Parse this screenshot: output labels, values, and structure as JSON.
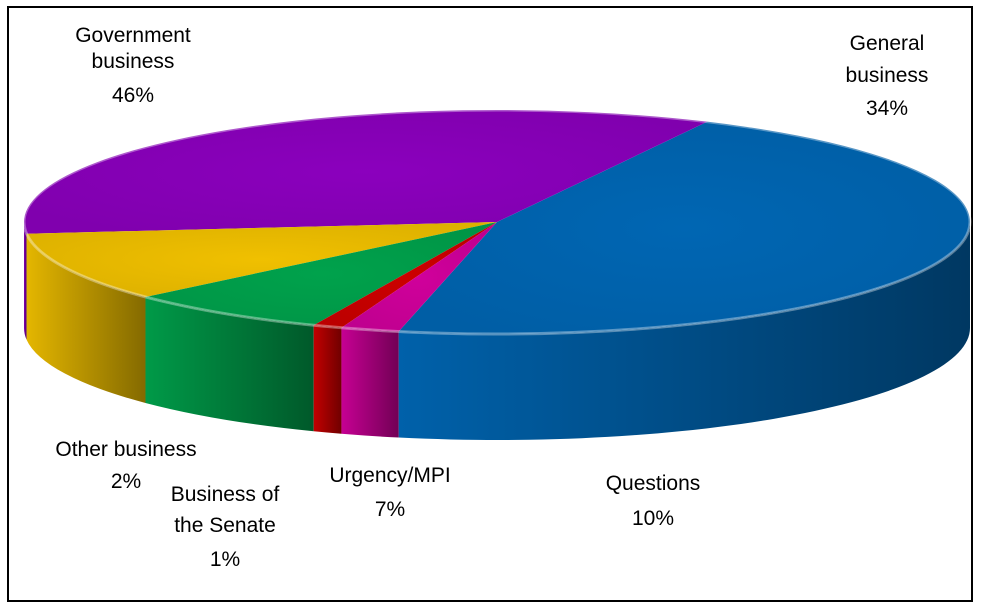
{
  "chart_data": {
    "type": "pie",
    "style": "3d",
    "title": "",
    "legend": "none",
    "slices": [
      {
        "label": "Government business",
        "value": 46,
        "value_label": "46%",
        "color": "#0066b3"
      },
      {
        "label": "General business",
        "value": 34,
        "value_label": "34%",
        "color": "#8b00bd"
      },
      {
        "label": "Questions",
        "value": 10,
        "value_label": "10%",
        "color": "#f0c000"
      },
      {
        "label": "Urgency/MPI",
        "value": 7,
        "value_label": "7%",
        "color": "#00a24c"
      },
      {
        "label": "Business of the Senate",
        "value": 1,
        "value_label": "1%",
        "color": "#cc0000"
      },
      {
        "label": "Other business",
        "value": 2,
        "value_label": "2%",
        "color": "#d0009b"
      }
    ]
  }
}
